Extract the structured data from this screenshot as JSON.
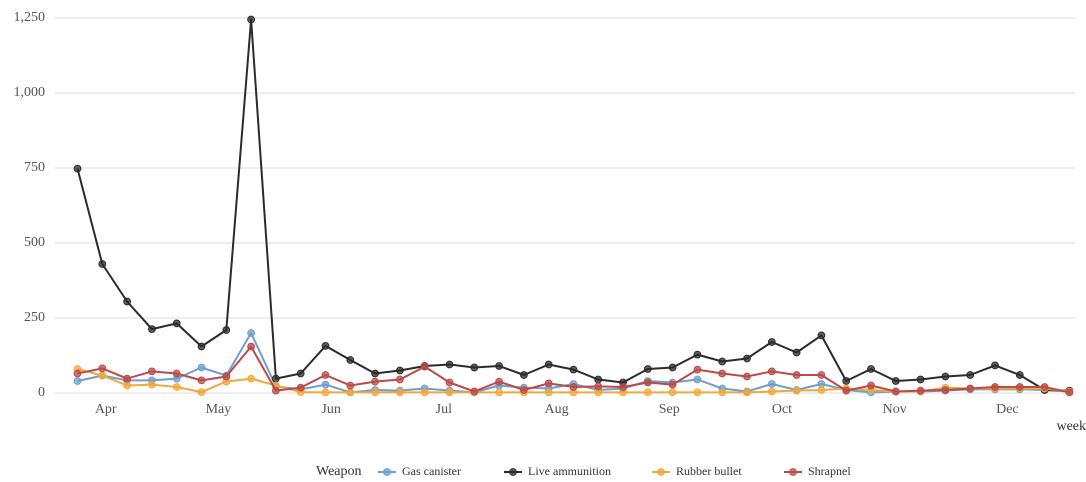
{
  "chart_data": {
    "type": "line",
    "xlabel": "week",
    "ylabel": "",
    "ylim": [
      0,
      1250
    ],
    "y_ticks": [
      0,
      250,
      500,
      750,
      1000,
      1250
    ],
    "y_tick_labels": [
      "0",
      "250",
      "500",
      "750",
      "1,000",
      "1,250"
    ],
    "x_range": [
      0.55,
      9.6
    ],
    "x_ticks": [
      1,
      2,
      3,
      4,
      5,
      6,
      7,
      8,
      9
    ],
    "x_tick_labels": [
      "Apr",
      "May",
      "Jun",
      "Jul",
      "Aug",
      "Sep",
      "Oct",
      "Nov",
      "Dec"
    ],
    "grid": true,
    "legend_title": "Weapon",
    "legend_position": "bottom",
    "x_unit_note": "x values in months (1 = Apr ... 9 = Dec)",
    "x": [
      0.75,
      0.97,
      1.19,
      1.41,
      1.63,
      1.85,
      2.07,
      2.29,
      2.51,
      2.73,
      2.95,
      3.17,
      3.39,
      3.61,
      3.83,
      4.05,
      4.27,
      4.49,
      4.71,
      4.93,
      5.15,
      5.37,
      5.59,
      5.81,
      6.03,
      6.25,
      6.47,
      6.69,
      6.91,
      7.13,
      7.35,
      7.57,
      7.79,
      8.01,
      8.23,
      8.45,
      8.67,
      8.89,
      9.11,
      9.33,
      9.55
    ],
    "series": [
      {
        "name": "Gas canister",
        "color": "#6e9fd0",
        "values": [
          40,
          58,
          42,
          42,
          48,
          85,
          58,
          200,
          22,
          12,
          28,
          2,
          10,
          8,
          15,
          8,
          2,
          25,
          18,
          15,
          30,
          10,
          15,
          40,
          35,
          45,
          15,
          5,
          30,
          10,
          30,
          10,
          2,
          5,
          5,
          8,
          12,
          12,
          12,
          10,
          5
        ]
      },
      {
        "name": "Live ammunition",
        "color": "#2b2b2b",
        "values": [
          748,
          430,
          305,
          213,
          232,
          155,
          210,
          1245,
          48,
          65,
          157,
          110,
          65,
          75,
          90,
          95,
          85,
          90,
          60,
          95,
          78,
          45,
          35,
          80,
          85,
          128,
          105,
          115,
          170,
          135,
          192,
          40,
          80,
          40,
          45,
          55,
          60,
          92,
          60,
          10,
          8
        ]
      },
      {
        "name": "Rubber bullet",
        "color": "#f2a93b",
        "values": [
          80,
          58,
          25,
          28,
          20,
          3,
          38,
          48,
          25,
          3,
          2,
          2,
          2,
          2,
          2,
          2,
          2,
          2,
          2,
          2,
          2,
          2,
          2,
          2,
          2,
          2,
          2,
          2,
          5,
          8,
          10,
          15,
          10,
          5,
          5,
          18,
          15,
          15,
          15,
          15,
          5
        ]
      },
      {
        "name": "Shrapnel",
        "color": "#bb4b48",
        "values": [
          65,
          82,
          48,
          72,
          65,
          42,
          55,
          155,
          8,
          18,
          60,
          25,
          38,
          45,
          88,
          35,
          5,
          38,
          10,
          32,
          20,
          22,
          20,
          35,
          28,
          78,
          65,
          55,
          72,
          60,
          60,
          8,
          25,
          5,
          8,
          10,
          15,
          20,
          20,
          20,
          2
        ]
      }
    ]
  }
}
